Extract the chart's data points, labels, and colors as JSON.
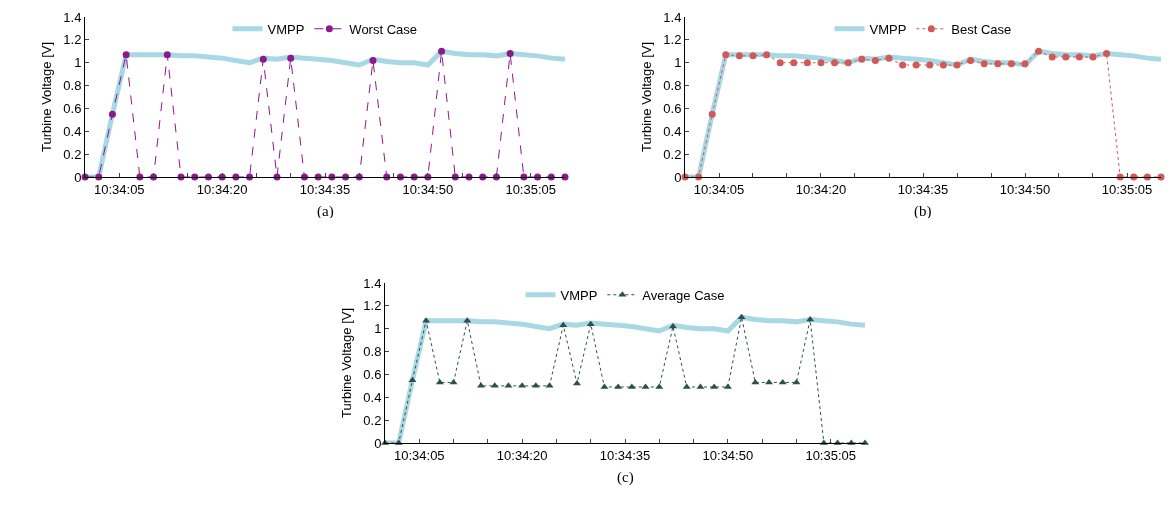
{
  "chart_data": [
    {
      "type": "line",
      "ylabel": "Turbine Voltage [V]",
      "annotations": [
        "(a)"
      ],
      "legend": "top",
      "grid": false,
      "x": [
        10.566667,
        10.567222,
        10.567778,
        10.568333,
        10.568889,
        10.569444,
        10.57,
        10.570556,
        10.571111,
        10.571667,
        10.572222,
        10.572778,
        10.573333,
        10.573889,
        10.574444,
        10.575,
        10.575556,
        10.576111,
        10.576667,
        10.577222,
        10.577778,
        10.578333,
        10.578889,
        10.579444,
        10.58,
        10.580556,
        10.581111,
        10.581667,
        10.582222,
        10.582778,
        10.583333,
        10.583889,
        10.584444,
        10.585,
        10.585556,
        10.586111
      ],
      "xlim": [
        10.566667,
        10.586111
      ],
      "xticks": [
        {
          "value": 10.568056,
          "label": "10:34:05"
        },
        {
          "value": 10.569444,
          "label": null
        },
        {
          "value": 10.570833,
          "label": null
        },
        {
          "value": 10.572222,
          "label": "10:34:20"
        },
        {
          "value": 10.573611,
          "label": null
        },
        {
          "value": 10.575,
          "label": null
        },
        {
          "value": 10.576389,
          "label": "10:34:35"
        },
        {
          "value": 10.577778,
          "label": null
        },
        {
          "value": 10.579167,
          "label": null
        },
        {
          "value": 10.580556,
          "label": "10:34:50"
        },
        {
          "value": 10.581944,
          "label": null
        },
        {
          "value": 10.583333,
          "label": null
        },
        {
          "value": 10.584722,
          "label": "10:35:05"
        }
      ],
      "ylim": [
        0,
        1.4
      ],
      "yticks": [
        0,
        0.2,
        0.4,
        0.6,
        0.8,
        1,
        1.2,
        1.4
      ],
      "series": [
        {
          "name": "VMPP",
          "color": "#a8d8e4",
          "marker": "none",
          "line_style": "solid",
          "values": [
            0,
            0,
            0.55,
            1.07,
            1.07,
            1.07,
            1.07,
            1.06,
            1.06,
            1.05,
            1.04,
            1.02,
            1.0,
            1.04,
            1.03,
            1.05,
            1.04,
            1.03,
            1.02,
            1.0,
            0.98,
            1.03,
            1.01,
            1.0,
            1.0,
            0.98,
            1.1,
            1.08,
            1.07,
            1.07,
            1.06,
            1.08,
            1.07,
            1.06,
            1.04,
            1.03
          ]
        },
        {
          "name": "Worst Case",
          "color": "#8b1a8b",
          "marker": "circle",
          "line_style": "dashed",
          "values": [
            0,
            0,
            0.55,
            1.07,
            0,
            0,
            1.07,
            0,
            0,
            0,
            0,
            0,
            0,
            1.03,
            0,
            1.04,
            0,
            0,
            0,
            0,
            0,
            1.02,
            0,
            0,
            0,
            0,
            1.1,
            0,
            0,
            0,
            0,
            1.08,
            0,
            0,
            0,
            0
          ]
        }
      ]
    },
    {
      "type": "line",
      "ylabel": "Turbine Voltage [V]",
      "annotations": [
        "(b)"
      ],
      "legend": "top",
      "grid": false,
      "x": [
        10.566667,
        10.567222,
        10.567778,
        10.568333,
        10.568889,
        10.569444,
        10.57,
        10.570556,
        10.571111,
        10.571667,
        10.572222,
        10.572778,
        10.573333,
        10.573889,
        10.574444,
        10.575,
        10.575556,
        10.576111,
        10.576667,
        10.577222,
        10.577778,
        10.578333,
        10.578889,
        10.579444,
        10.58,
        10.580556,
        10.581111,
        10.581667,
        10.582222,
        10.582778,
        10.583333,
        10.583889,
        10.584444,
        10.585,
        10.585556,
        10.586111
      ],
      "xlim": [
        10.566667,
        10.586111
      ],
      "xticks": [
        {
          "value": 10.568056,
          "label": "10:34:05"
        },
        {
          "value": 10.569444,
          "label": null
        },
        {
          "value": 10.570833,
          "label": null
        },
        {
          "value": 10.572222,
          "label": "10:34:20"
        },
        {
          "value": 10.573611,
          "label": null
        },
        {
          "value": 10.575,
          "label": null
        },
        {
          "value": 10.576389,
          "label": "10:34:35"
        },
        {
          "value": 10.577778,
          "label": null
        },
        {
          "value": 10.579167,
          "label": null
        },
        {
          "value": 10.580556,
          "label": "10:34:50"
        },
        {
          "value": 10.581944,
          "label": null
        },
        {
          "value": 10.583333,
          "label": null
        },
        {
          "value": 10.584722,
          "label": "10:35:05"
        }
      ],
      "ylim": [
        0,
        1.4
      ],
      "yticks": [
        0,
        0.2,
        0.4,
        0.6,
        0.8,
        1,
        1.2,
        1.4
      ],
      "series": [
        {
          "name": "VMPP",
          "color": "#a8d8e4",
          "marker": "none",
          "line_style": "solid",
          "values": [
            0,
            0,
            0.55,
            1.07,
            1.07,
            1.07,
            1.07,
            1.06,
            1.06,
            1.05,
            1.04,
            1.02,
            1.0,
            1.04,
            1.03,
            1.05,
            1.04,
            1.03,
            1.02,
            1.0,
            0.98,
            1.03,
            1.01,
            1.0,
            1.0,
            0.98,
            1.1,
            1.08,
            1.07,
            1.07,
            1.06,
            1.08,
            1.07,
            1.06,
            1.04,
            1.03
          ]
        },
        {
          "name": "Best Case",
          "color": "#d05a5a",
          "marker": "circle",
          "line_style": "dotted",
          "values": [
            0,
            0,
            0.55,
            1.07,
            1.06,
            1.06,
            1.07,
            1.0,
            1.0,
            1.0,
            1.0,
            1.0,
            1.0,
            1.03,
            1.02,
            1.04,
            0.98,
            0.98,
            0.98,
            0.98,
            0.98,
            1.02,
            0.99,
            0.99,
            0.99,
            0.99,
            1.1,
            1.05,
            1.05,
            1.05,
            1.05,
            1.08,
            0,
            0,
            0,
            0
          ]
        }
      ]
    },
    {
      "type": "line",
      "ylabel": "Turbine Voltage [V]",
      "annotations": [
        "(c)"
      ],
      "legend": "top",
      "grid": false,
      "x": [
        10.566667,
        10.567222,
        10.567778,
        10.568333,
        10.568889,
        10.569444,
        10.57,
        10.570556,
        10.571111,
        10.571667,
        10.572222,
        10.572778,
        10.573333,
        10.573889,
        10.574444,
        10.575,
        10.575556,
        10.576111,
        10.576667,
        10.577222,
        10.577778,
        10.578333,
        10.578889,
        10.579444,
        10.58,
        10.580556,
        10.581111,
        10.581667,
        10.582222,
        10.582778,
        10.583333,
        10.583889,
        10.584444,
        10.585,
        10.585556,
        10.586111
      ],
      "xlim": [
        10.566667,
        10.586111
      ],
      "xticks": [
        {
          "value": 10.568056,
          "label": "10:34:05"
        },
        {
          "value": 10.569444,
          "label": null
        },
        {
          "value": 10.570833,
          "label": null
        },
        {
          "value": 10.572222,
          "label": "10:34:20"
        },
        {
          "value": 10.573611,
          "label": null
        },
        {
          "value": 10.575,
          "label": null
        },
        {
          "value": 10.576389,
          "label": "10:34:35"
        },
        {
          "value": 10.577778,
          "label": null
        },
        {
          "value": 10.579167,
          "label": null
        },
        {
          "value": 10.580556,
          "label": "10:34:50"
        },
        {
          "value": 10.581944,
          "label": null
        },
        {
          "value": 10.583333,
          "label": null
        },
        {
          "value": 10.584722,
          "label": "10:35:05"
        }
      ],
      "ylim": [
        0,
        1.4
      ],
      "yticks": [
        0,
        0.2,
        0.4,
        0.6,
        0.8,
        1,
        1.2,
        1.4
      ],
      "series": [
        {
          "name": "VMPP",
          "color": "#a8d8e4",
          "marker": "none",
          "line_style": "solid",
          "values": [
            0,
            0,
            0.55,
            1.07,
            1.07,
            1.07,
            1.07,
            1.06,
            1.06,
            1.05,
            1.04,
            1.02,
            1.0,
            1.04,
            1.03,
            1.05,
            1.04,
            1.03,
            1.02,
            1.0,
            0.98,
            1.03,
            1.01,
            1.0,
            1.0,
            0.98,
            1.1,
            1.08,
            1.07,
            1.07,
            1.06,
            1.08,
            1.07,
            1.06,
            1.04,
            1.03
          ]
        },
        {
          "name": "Average Case",
          "color": "#2f4f4f",
          "marker": "triangle",
          "line_style": "dotted",
          "values": [
            0,
            0,
            0.55,
            1.07,
            0.53,
            0.53,
            1.07,
            0.5,
            0.5,
            0.5,
            0.5,
            0.5,
            0.5,
            1.03,
            0.52,
            1.04,
            0.49,
            0.49,
            0.49,
            0.49,
            0.49,
            1.02,
            0.49,
            0.49,
            0.49,
            0.49,
            1.1,
            0.53,
            0.53,
            0.53,
            0.53,
            1.08,
            0,
            0,
            0,
            0
          ]
        }
      ]
    }
  ]
}
